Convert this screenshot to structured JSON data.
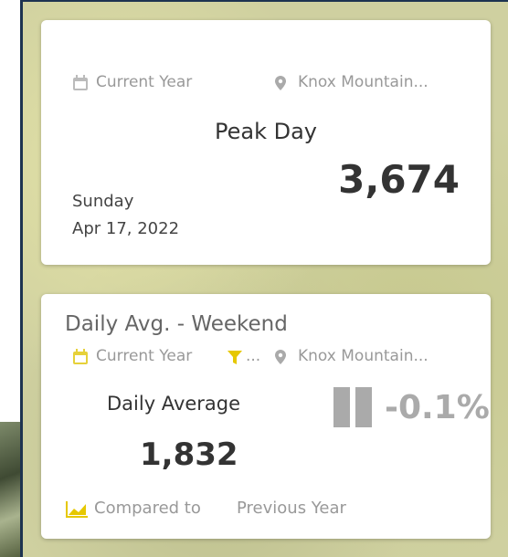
{
  "peak_card": {
    "filters": {
      "period": "Current Year",
      "location": "Knox Mountain..."
    },
    "title": "Peak Day",
    "weekday": "Sunday",
    "date": "Apr 17, 2022",
    "value": "3,674"
  },
  "average_card": {
    "title": "Daily Avg. - Weekend",
    "filters": {
      "period": "Current Year",
      "more": "...",
      "location": "Knox Mountain..."
    },
    "label": "Daily Average",
    "value": "1,832",
    "change": "-0.1%",
    "comparison": {
      "prefix": "Compared to",
      "period": "Previous Year"
    }
  }
}
